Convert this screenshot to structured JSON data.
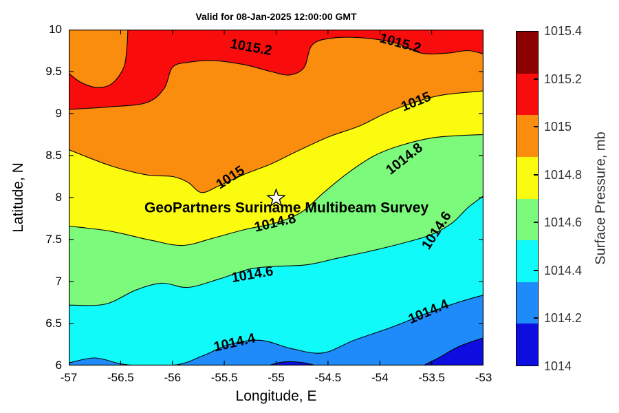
{
  "chart_data": {
    "type": "filled_contour",
    "title": "Valid for 08-Jan-2025 12:00:00 GMT",
    "xlabel": "Longitude, E",
    "ylabel": "Latitude, N",
    "xlim": [
      -57,
      -53
    ],
    "ylim": [
      6,
      10
    ],
    "grid": false,
    "xticks": [
      {
        "v": -57,
        "label": "-57"
      },
      {
        "v": -56.5,
        "label": "-56.5"
      },
      {
        "v": -56,
        "label": "-56"
      },
      {
        "v": -55.5,
        "label": "-55.5"
      },
      {
        "v": -55,
        "label": "-55"
      },
      {
        "v": -54.5,
        "label": "-54.5"
      },
      {
        "v": -54,
        "label": "-54"
      },
      {
        "v": -53.5,
        "label": "-53.5"
      },
      {
        "v": -53,
        "label": "-53"
      }
    ],
    "yticks": [
      {
        "v": 6,
        "label": "6"
      },
      {
        "v": 6.5,
        "label": "6.5"
      },
      {
        "v": 7,
        "label": "7"
      },
      {
        "v": 7.5,
        "label": "7.5"
      },
      {
        "v": 8,
        "label": "8"
      },
      {
        "v": 8.5,
        "label": "8.5"
      },
      {
        "v": 9,
        "label": "9"
      },
      {
        "v": 9.5,
        "label": "9.5"
      },
      {
        "v": 10,
        "label": "10"
      }
    ],
    "background_fill_above_top_level": "#F80C0C",
    "line_color": "#000000",
    "contours": [
      {
        "level": 1015.2,
        "label": "1015.2",
        "fill_below": "#FB8D0E",
        "points": [
          [
            -57,
            9.05
          ],
          [
            -56.6,
            9.08
          ],
          [
            -56.25,
            9.13
          ],
          [
            -56.08,
            9.3
          ],
          [
            -56.0,
            9.55
          ],
          [
            -55.85,
            9.61
          ],
          [
            -55.6,
            9.63
          ],
          [
            -55.3,
            9.58
          ],
          [
            -55.05,
            9.5
          ],
          [
            -54.87,
            9.46
          ],
          [
            -54.73,
            9.55
          ],
          [
            -54.65,
            9.82
          ],
          [
            -54.45,
            9.9
          ],
          [
            -54.15,
            9.9
          ],
          [
            -53.85,
            9.84
          ],
          [
            -53.6,
            9.72
          ],
          [
            -53.35,
            9.72
          ],
          [
            -53.15,
            9.75
          ],
          [
            -53,
            9.71
          ]
        ],
        "labels": [
          {
            "lon": -55.24,
            "lat": 9.79,
            "rot": 10
          },
          {
            "lon": -53.8,
            "lat": 9.84,
            "rot": 15
          }
        ]
      },
      {
        "level": 1015,
        "label": "1015",
        "fill_below": "#FBFB10",
        "points": [
          [
            -57,
            8.57
          ],
          [
            -56.6,
            8.38
          ],
          [
            -56.25,
            8.27
          ],
          [
            -56.0,
            8.25
          ],
          [
            -55.85,
            8.18
          ],
          [
            -55.72,
            8.06
          ],
          [
            -55.55,
            8.14
          ],
          [
            -55.3,
            8.28
          ],
          [
            -55.05,
            8.4
          ],
          [
            -54.8,
            8.55
          ],
          [
            -54.5,
            8.72
          ],
          [
            -54.2,
            8.85
          ],
          [
            -53.95,
            9.0
          ],
          [
            -53.7,
            9.12
          ],
          [
            -53.4,
            9.22
          ],
          [
            -53,
            9.27
          ]
        ],
        "labels": [
          {
            "lon": -55.44,
            "lat": 8.24,
            "rot": -33
          },
          {
            "lon": -53.65,
            "lat": 9.14,
            "rot": -22
          }
        ]
      },
      {
        "level": 1014.8,
        "label": "1014.8",
        "fill_below": "#7BFA7B",
        "points": [
          [
            -57,
            7.66
          ],
          [
            -56.6,
            7.6
          ],
          [
            -56.2,
            7.49
          ],
          [
            -55.9,
            7.43
          ],
          [
            -55.6,
            7.52
          ],
          [
            -55.3,
            7.62
          ],
          [
            -55.0,
            7.7
          ],
          [
            -54.75,
            7.83
          ],
          [
            -54.55,
            8.05
          ],
          [
            -54.3,
            8.3
          ],
          [
            -54.05,
            8.5
          ],
          [
            -53.8,
            8.62
          ],
          [
            -53.5,
            8.71
          ],
          [
            -53.2,
            8.74
          ],
          [
            -53,
            8.75
          ]
        ],
        "labels": [
          {
            "lon": -55.01,
            "lat": 7.7,
            "rot": -13
          },
          {
            "lon": -53.76,
            "lat": 8.46,
            "rot": -38
          }
        ]
      },
      {
        "level": 1014.6,
        "label": "1014.6",
        "fill_below": "#10FAFA",
        "points": [
          [
            -57,
            6.72
          ],
          [
            -56.65,
            6.73
          ],
          [
            -56.35,
            6.9
          ],
          [
            -56.1,
            6.98
          ],
          [
            -55.85,
            6.93
          ],
          [
            -55.55,
            7.03
          ],
          [
            -55.25,
            7.15
          ],
          [
            -55.0,
            7.18
          ],
          [
            -54.7,
            7.2
          ],
          [
            -54.4,
            7.28
          ],
          [
            -54.1,
            7.36
          ],
          [
            -53.8,
            7.45
          ],
          [
            -53.5,
            7.56
          ],
          [
            -53.3,
            7.7
          ],
          [
            -53.15,
            7.88
          ],
          [
            -53,
            8.02
          ]
        ],
        "labels": [
          {
            "lon": -55.23,
            "lat": 7.08,
            "rot": -10
          },
          {
            "lon": -53.45,
            "lat": 7.61,
            "rot": -57
          }
        ]
      },
      {
        "level": 1014.4,
        "label": "1014.4",
        "fill_below": "#1F8BFB",
        "points": [
          [
            -57,
            6.03
          ],
          [
            -56.75,
            6.09
          ],
          [
            -56.5,
            6.02
          ],
          [
            -56.3,
            6.0
          ],
          [
            -55.95,
            6.01
          ],
          [
            -55.7,
            6.12
          ],
          [
            -55.45,
            6.25
          ],
          [
            -55.15,
            6.3
          ],
          [
            -54.85,
            6.2
          ],
          [
            -54.55,
            6.15
          ],
          [
            -54.25,
            6.3
          ],
          [
            -53.9,
            6.45
          ],
          [
            -53.55,
            6.62
          ],
          [
            -53.25,
            6.75
          ],
          [
            -53,
            6.84
          ]
        ],
        "labels": [
          {
            "lon": -55.4,
            "lat": 6.27,
            "rot": -13
          },
          {
            "lon": -53.53,
            "lat": 6.64,
            "rot": -23
          }
        ]
      },
      {
        "level": 1014.2,
        "label": "1014.2",
        "fill_below": "#0D0DE0",
        "points": [
          [
            -53.58,
            6.0
          ],
          [
            -53.42,
            6.1
          ],
          [
            -53.25,
            6.22
          ],
          [
            -53.1,
            6.29
          ],
          [
            -53,
            6.33
          ]
        ],
        "labels": []
      }
    ],
    "special_regions": [
      {
        "name": "orange-pocket-topleft",
        "level": 1015.2,
        "fill": "#FB8D0E",
        "closure": "top",
        "points": [
          [
            -57,
            9.48
          ],
          [
            -56.88,
            9.37
          ],
          [
            -56.72,
            9.31
          ],
          [
            -56.58,
            9.36
          ],
          [
            -56.47,
            9.55
          ],
          [
            -56.44,
            9.78
          ],
          [
            -56.43,
            10.0
          ]
        ]
      },
      {
        "name": "darkblue-sliver-bottom",
        "level": 1014.2,
        "fill": "#0D0DE0",
        "closure": "bottom",
        "points": [
          [
            -55.07,
            6.0
          ],
          [
            -54.97,
            6.035
          ],
          [
            -54.85,
            6.045
          ],
          [
            -54.72,
            6.03
          ],
          [
            -54.62,
            6.0
          ]
        ]
      }
    ],
    "annotation": {
      "text": "GeoPartners Suriname Multibeam Survey",
      "lon": -54.9,
      "lat": 7.88,
      "marker": {
        "shape": "star",
        "lon": -55.0,
        "lat": 7.99,
        "fill": "#FFFFFF",
        "edge": "#000000"
      }
    },
    "colorbar": {
      "label": "Surface Pressure, mb",
      "range": [
        1014,
        1015.4
      ],
      "segment_colors_top_to_bottom": [
        "#8B0000",
        "#F80C0C",
        "#FB8D0E",
        "#FBFB10",
        "#7BFA7B",
        "#10FAFA",
        "#1F8BFB",
        "#0D0DE0"
      ],
      "ticks": [
        {
          "value": 1015.4,
          "label": "1015.4"
        },
        {
          "value": 1015.2,
          "label": "1015.2"
        },
        {
          "value": 1015,
          "label": "1015"
        },
        {
          "value": 1014.8,
          "label": "1014.8"
        },
        {
          "value": 1014.6,
          "label": "1014.6"
        },
        {
          "value": 1014.4,
          "label": "1014.4"
        },
        {
          "value": 1014.2,
          "label": "1014.2"
        },
        {
          "value": 1014,
          "label": "1014"
        }
      ]
    }
  }
}
